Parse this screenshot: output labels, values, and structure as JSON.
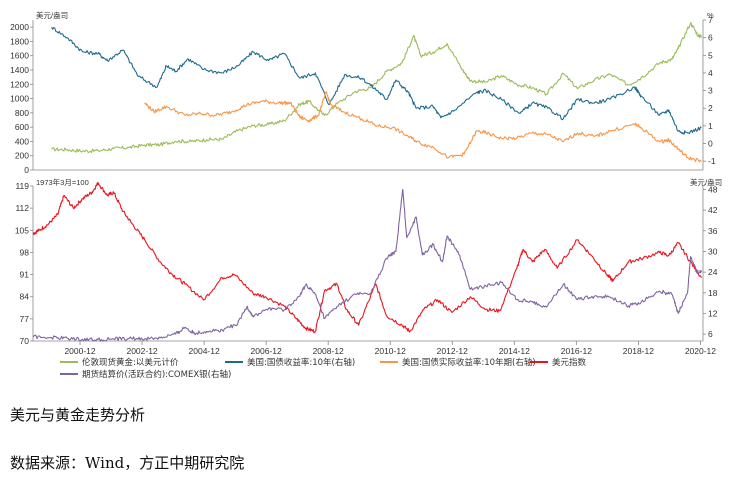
{
  "chart_data": [
    {
      "type": "line",
      "panel": "top",
      "left_axis_unit": "美元/盎司",
      "right_axis_unit": "%",
      "left_ylim": [
        0,
        2100
      ],
      "left_ticks": [
        "0",
        "200",
        "400",
        "600",
        "800",
        "1000",
        "1200",
        "1400",
        "1600",
        "1800",
        "2000"
      ],
      "right_ylim": [
        -1.5,
        7
      ],
      "right_ticks": [
        "-1",
        "0",
        "1",
        "2",
        "3",
        "4",
        "5",
        "6",
        "7"
      ],
      "series": [
        {
          "name": "伦敦现货黄金:以美元计价",
          "axis": "left",
          "color": "#9bbb59",
          "points": [
            [
              2000.0,
              290
            ],
            [
              2000.5,
              285
            ],
            [
              2001.0,
              265
            ],
            [
              2001.5,
              270
            ],
            [
              2002.0,
              300
            ],
            [
              2002.5,
              315
            ],
            [
              2003.0,
              350
            ],
            [
              2003.5,
              355
            ],
            [
              2004.0,
              405
            ],
            [
              2004.5,
              400
            ],
            [
              2005.0,
              425
            ],
            [
              2005.5,
              430
            ],
            [
              2006.0,
              550
            ],
            [
              2006.5,
              620
            ],
            [
              2007.0,
              640
            ],
            [
              2007.5,
              690
            ],
            [
              2008.0,
              920
            ],
            [
              2008.3,
              960
            ],
            [
              2008.8,
              760
            ],
            [
              2009.2,
              930
            ],
            [
              2009.8,
              1100
            ],
            [
              2010.3,
              1150
            ],
            [
              2010.8,
              1380
            ],
            [
              2011.3,
              1500
            ],
            [
              2011.67,
              1880
            ],
            [
              2011.9,
              1600
            ],
            [
              2012.3,
              1650
            ],
            [
              2012.75,
              1770
            ],
            [
              2013.25,
              1400
            ],
            [
              2013.5,
              1250
            ],
            [
              2014.0,
              1230
            ],
            [
              2014.5,
              1320
            ],
            [
              2015.0,
              1200
            ],
            [
              2015.5,
              1150
            ],
            [
              2015.95,
              1060
            ],
            [
              2016.5,
              1350
            ],
            [
              2016.95,
              1140
            ],
            [
              2017.5,
              1260
            ],
            [
              2018.0,
              1340
            ],
            [
              2018.6,
              1190
            ],
            [
              2019.0,
              1290
            ],
            [
              2019.6,
              1500
            ],
            [
              2020.0,
              1550
            ],
            [
              2020.2,
              1700
            ],
            [
              2020.6,
              2060
            ],
            [
              2020.85,
              1880
            ],
            [
              2020.95,
              1870
            ]
          ]
        },
        {
          "name": "美国:国债收益率:10年(右轴)",
          "axis": "right",
          "color": "#1f6b8f",
          "points": [
            [
              2000.0,
              6.6
            ],
            [
              2000.5,
              6.0
            ],
            [
              2001.0,
              5.2
            ],
            [
              2001.5,
              5.1
            ],
            [
              2001.8,
              4.7
            ],
            [
              2002.3,
              5.3
            ],
            [
              2002.8,
              3.8
            ],
            [
              2003.4,
              3.2
            ],
            [
              2003.7,
              4.4
            ],
            [
              2004.0,
              4.1
            ],
            [
              2004.4,
              4.8
            ],
            [
              2004.9,
              4.2
            ],
            [
              2005.5,
              4.0
            ],
            [
              2006.0,
              4.4
            ],
            [
              2006.5,
              5.2
            ],
            [
              2007.0,
              4.7
            ],
            [
              2007.5,
              5.1
            ],
            [
              2008.0,
              3.7
            ],
            [
              2008.5,
              4.0
            ],
            [
              2008.95,
              2.2
            ],
            [
              2009.45,
              3.9
            ],
            [
              2010.0,
              3.7
            ],
            [
              2010.5,
              3.0
            ],
            [
              2010.8,
              2.5
            ],
            [
              2011.1,
              3.6
            ],
            [
              2011.5,
              2.9
            ],
            [
              2011.75,
              2.0
            ],
            [
              2012.3,
              2.1
            ],
            [
              2012.55,
              1.45
            ],
            [
              2013.0,
              1.9
            ],
            [
              2013.7,
              2.9
            ],
            [
              2014.0,
              3.0
            ],
            [
              2014.5,
              2.5
            ],
            [
              2015.1,
              1.7
            ],
            [
              2015.5,
              2.3
            ],
            [
              2016.0,
              2.0
            ],
            [
              2016.5,
              1.4
            ],
            [
              2016.95,
              2.5
            ],
            [
              2017.5,
              2.3
            ],
            [
              2018.0,
              2.5
            ],
            [
              2018.8,
              3.2
            ],
            [
              2019.0,
              2.7
            ],
            [
              2019.6,
              1.6
            ],
            [
              2019.9,
              1.9
            ],
            [
              2020.2,
              0.7
            ],
            [
              2020.5,
              0.6
            ],
            [
              2020.95,
              0.9
            ]
          ]
        },
        {
          "name": "美国:国债实际收益率:10年期(右轴)",
          "axis": "right",
          "color": "#f79646",
          "points": [
            [
              2003.0,
              2.3
            ],
            [
              2003.3,
              1.8
            ],
            [
              2003.7,
              2.1
            ],
            [
              2004.3,
              1.6
            ],
            [
              2004.8,
              1.7
            ],
            [
              2005.3,
              1.6
            ],
            [
              2005.8,
              1.8
            ],
            [
              2006.3,
              2.2
            ],
            [
              2006.8,
              2.4
            ],
            [
              2007.3,
              2.3
            ],
            [
              2007.7,
              2.3
            ],
            [
              2008.0,
              1.5
            ],
            [
              2008.3,
              1.3
            ],
            [
              2008.6,
              1.6
            ],
            [
              2008.85,
              2.9
            ],
            [
              2009.0,
              2.2
            ],
            [
              2009.4,
              1.8
            ],
            [
              2010.0,
              1.4
            ],
            [
              2010.5,
              1.0
            ],
            [
              2011.0,
              0.9
            ],
            [
              2011.5,
              0.4
            ],
            [
              2011.9,
              0.0
            ],
            [
              2012.3,
              -0.2
            ],
            [
              2012.8,
              -0.8
            ],
            [
              2013.3,
              -0.6
            ],
            [
              2013.7,
              0.7
            ],
            [
              2014.0,
              0.6
            ],
            [
              2014.5,
              0.3
            ],
            [
              2015.0,
              0.3
            ],
            [
              2015.5,
              0.6
            ],
            [
              2016.0,
              0.5
            ],
            [
              2016.5,
              0.1
            ],
            [
              2016.95,
              0.6
            ],
            [
              2017.5,
              0.4
            ],
            [
              2018.0,
              0.7
            ],
            [
              2018.8,
              1.1
            ],
            [
              2019.0,
              0.9
            ],
            [
              2019.6,
              0.1
            ],
            [
              2019.9,
              0.2
            ],
            [
              2020.2,
              -0.3
            ],
            [
              2020.5,
              -0.8
            ],
            [
              2020.95,
              -1.0
            ]
          ]
        }
      ]
    },
    {
      "type": "line",
      "panel": "bottom",
      "left_axis_unit": "1973年3月=100",
      "right_axis_unit": "美元/盎司",
      "left_ylim": [
        70,
        119
      ],
      "left_ticks": [
        "70",
        "77",
        "84",
        "91",
        "98",
        "105",
        "112",
        "119"
      ],
      "right_ylim": [
        4,
        49
      ],
      "right_ticks": [
        "6",
        "12",
        "18",
        "24",
        "30",
        "36",
        "42",
        "48"
      ],
      "x_range": [
        1999.4,
        2021.0
      ],
      "x_ticks": [
        "2000-12",
        "2002-12",
        "2004-12",
        "2006-12",
        "2008-12",
        "2010-12",
        "2012-12",
        "2014-12",
        "2016-12",
        "2018-12",
        "2020-12"
      ],
      "series": [
        {
          "name": "美元指数",
          "axis": "left",
          "color": "#e8141e",
          "points": [
            [
              1999.4,
              104
            ],
            [
              1999.6,
              105
            ],
            [
              1999.9,
              107
            ],
            [
              2000.2,
              110
            ],
            [
              2000.4,
              116
            ],
            [
              2000.7,
              112
            ],
            [
              2001.0,
              115
            ],
            [
              2001.3,
              117
            ],
            [
              2001.5,
              120
            ],
            [
              2001.8,
              116
            ],
            [
              2002.0,
              117
            ],
            [
              2002.3,
              111
            ],
            [
              2002.6,
              107
            ],
            [
              2003.0,
              102
            ],
            [
              2003.5,
              95
            ],
            [
              2003.9,
              91
            ],
            [
              2004.3,
              88
            ],
            [
              2004.9,
              83
            ],
            [
              2005.5,
              90
            ],
            [
              2005.9,
              91
            ],
            [
              2006.5,
              85
            ],
            [
              2006.9,
              84
            ],
            [
              2007.5,
              81
            ],
            [
              2007.9,
              77
            ],
            [
              2008.2,
              74
            ],
            [
              2008.5,
              73
            ],
            [
              2008.8,
              86
            ],
            [
              2009.2,
              88
            ],
            [
              2009.5,
              80
            ],
            [
              2009.9,
              75
            ],
            [
              2010.45,
              88
            ],
            [
              2010.8,
              78
            ],
            [
              2011.3,
              75
            ],
            [
              2011.55,
              73
            ],
            [
              2012.0,
              80
            ],
            [
              2012.45,
              83
            ],
            [
              2012.9,
              79
            ],
            [
              2013.5,
              84
            ],
            [
              2014.0,
              80
            ],
            [
              2014.45,
              79.5
            ],
            [
              2015.0,
              93
            ],
            [
              2015.2,
              99
            ],
            [
              2015.5,
              95
            ],
            [
              2015.9,
              99
            ],
            [
              2016.3,
              93
            ],
            [
              2016.95,
              102
            ],
            [
              2017.4,
              97
            ],
            [
              2017.9,
              91
            ],
            [
              2018.1,
              89
            ],
            [
              2018.6,
              95
            ],
            [
              2019.0,
              96
            ],
            [
              2019.6,
              98
            ],
            [
              2019.9,
              97
            ],
            [
              2020.2,
              101
            ],
            [
              2020.6,
              95
            ],
            [
              2020.95,
              90
            ]
          ]
        },
        {
          "name": "期货结算价(活跃合约):COMEX银(右轴)",
          "axis": "right",
          "color": "#8064a2",
          "points": [
            [
              1999.4,
              5.2
            ],
            [
              2000.0,
              5.0
            ],
            [
              2000.5,
              4.8
            ],
            [
              2001.0,
              4.5
            ],
            [
              2001.5,
              4.4
            ],
            [
              2002.0,
              4.6
            ],
            [
              2002.5,
              4.7
            ],
            [
              2003.0,
              4.6
            ],
            [
              2003.5,
              4.9
            ],
            [
              2004.0,
              6.0
            ],
            [
              2004.3,
              8.0
            ],
            [
              2004.6,
              6.2
            ],
            [
              2005.0,
              6.8
            ],
            [
              2005.5,
              7.2
            ],
            [
              2006.0,
              9.0
            ],
            [
              2006.3,
              14.0
            ],
            [
              2006.5,
              11.0
            ],
            [
              2007.0,
              13.5
            ],
            [
              2007.5,
              13.0
            ],
            [
              2008.0,
              17.0
            ],
            [
              2008.2,
              20.5
            ],
            [
              2008.5,
              17.5
            ],
            [
              2008.8,
              10.5
            ],
            [
              2009.2,
              14.0
            ],
            [
              2009.8,
              17.5
            ],
            [
              2010.3,
              18.0
            ],
            [
              2010.8,
              28.0
            ],
            [
              2011.1,
              30.0
            ],
            [
              2011.32,
              48.0
            ],
            [
              2011.45,
              34.0
            ],
            [
              2011.75,
              40.0
            ],
            [
              2011.95,
              29.0
            ],
            [
              2012.3,
              32.0
            ],
            [
              2012.6,
              27.0
            ],
            [
              2012.75,
              34.5
            ],
            [
              2013.1,
              30.0
            ],
            [
              2013.5,
              19.0
            ],
            [
              2014.0,
              20.0
            ],
            [
              2014.5,
              21.0
            ],
            [
              2015.0,
              16.0
            ],
            [
              2015.5,
              15.5
            ],
            [
              2015.95,
              13.8
            ],
            [
              2016.5,
              20.5
            ],
            [
              2016.95,
              16.0
            ],
            [
              2017.5,
              17.0
            ],
            [
              2018.0,
              16.8
            ],
            [
              2018.6,
              14.2
            ],
            [
              2019.0,
              15.2
            ],
            [
              2019.6,
              18.5
            ],
            [
              2020.0,
              17.5
            ],
            [
              2020.2,
              12.0
            ],
            [
              2020.5,
              18.0
            ],
            [
              2020.6,
              28.5
            ],
            [
              2020.8,
              24.0
            ],
            [
              2020.95,
              24.5
            ]
          ]
        }
      ]
    }
  ],
  "caption": {
    "title": "美元与黄金走势分析",
    "source": "数据来源：Wind，方正中期研究院"
  }
}
